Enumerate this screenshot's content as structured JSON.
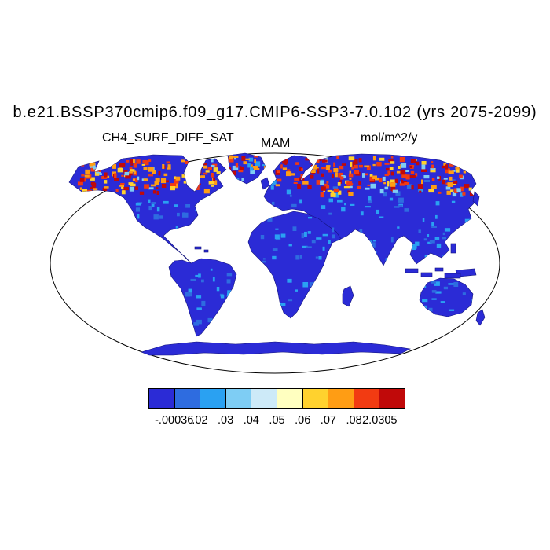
{
  "header": {
    "title": "b.e21.BSSP370cmip6.f09_g17.CMIP6-SSP3-7.0.102 (yrs 2075-2099)",
    "left_string": "CH4_SURF_DIFF_SAT",
    "center_string": "MAM",
    "right_string": "mol/m^2/y"
  },
  "chart_data": {
    "type": "heatmap",
    "title": "b.e21.BSSP370cmip6.f09_g17.CMIP6-SSP3-7.0.102 (yrs 2075-2099)",
    "variable": "CH4_SURF_DIFF_SAT",
    "season": "MAM",
    "units": "mol/m^2/y",
    "projection": "robinson world map, oceans blank white",
    "colorbar": {
      "orientation": "horizontal",
      "tick_labels": [
        "-.00036",
        ".02",
        ".03",
        ".04",
        ".05",
        ".06",
        ".07",
        ".08",
        "2.0305"
      ],
      "levels": [
        -0.00036,
        0.02,
        0.03,
        0.04,
        0.05,
        0.06,
        0.07,
        0.08,
        2.0305
      ],
      "colors": [
        "#2b2bd6",
        "#2e6ce0",
        "#2aa1f2",
        "#7ecdf4",
        "#cdeaf8",
        "#ffffc0",
        "#ffd22e",
        "#ff9d14",
        "#f23b12",
        "#c00909"
      ]
    },
    "regions": [
      {
        "region": "boreal North America (Alaska, Canada)",
        "approx_value": "0.06 to 2.03",
        "appearance": "dense red/orange/yellow hotspots"
      },
      {
        "region": "Greenland",
        "approx_value": "0.05 to 2.03",
        "appearance": "red/orange patches along coast"
      },
      {
        "region": "Scandinavia and northwest Russia",
        "approx_value": "0.06 to 2.03",
        "appearance": "red/orange hotspots"
      },
      {
        "region": "Siberia / boreal Russia",
        "approx_value": "0.06 to 2.03",
        "appearance": "dense red/orange/yellow hotspots"
      },
      {
        "region": "mid-latitude and tropical land",
        "approx_value": "-0.00036 to 0.03",
        "appearance": "uniform dark blue with scattered medium blue"
      },
      {
        "region": "oceans",
        "approx_value": "no data",
        "appearance": "white background"
      }
    ]
  }
}
